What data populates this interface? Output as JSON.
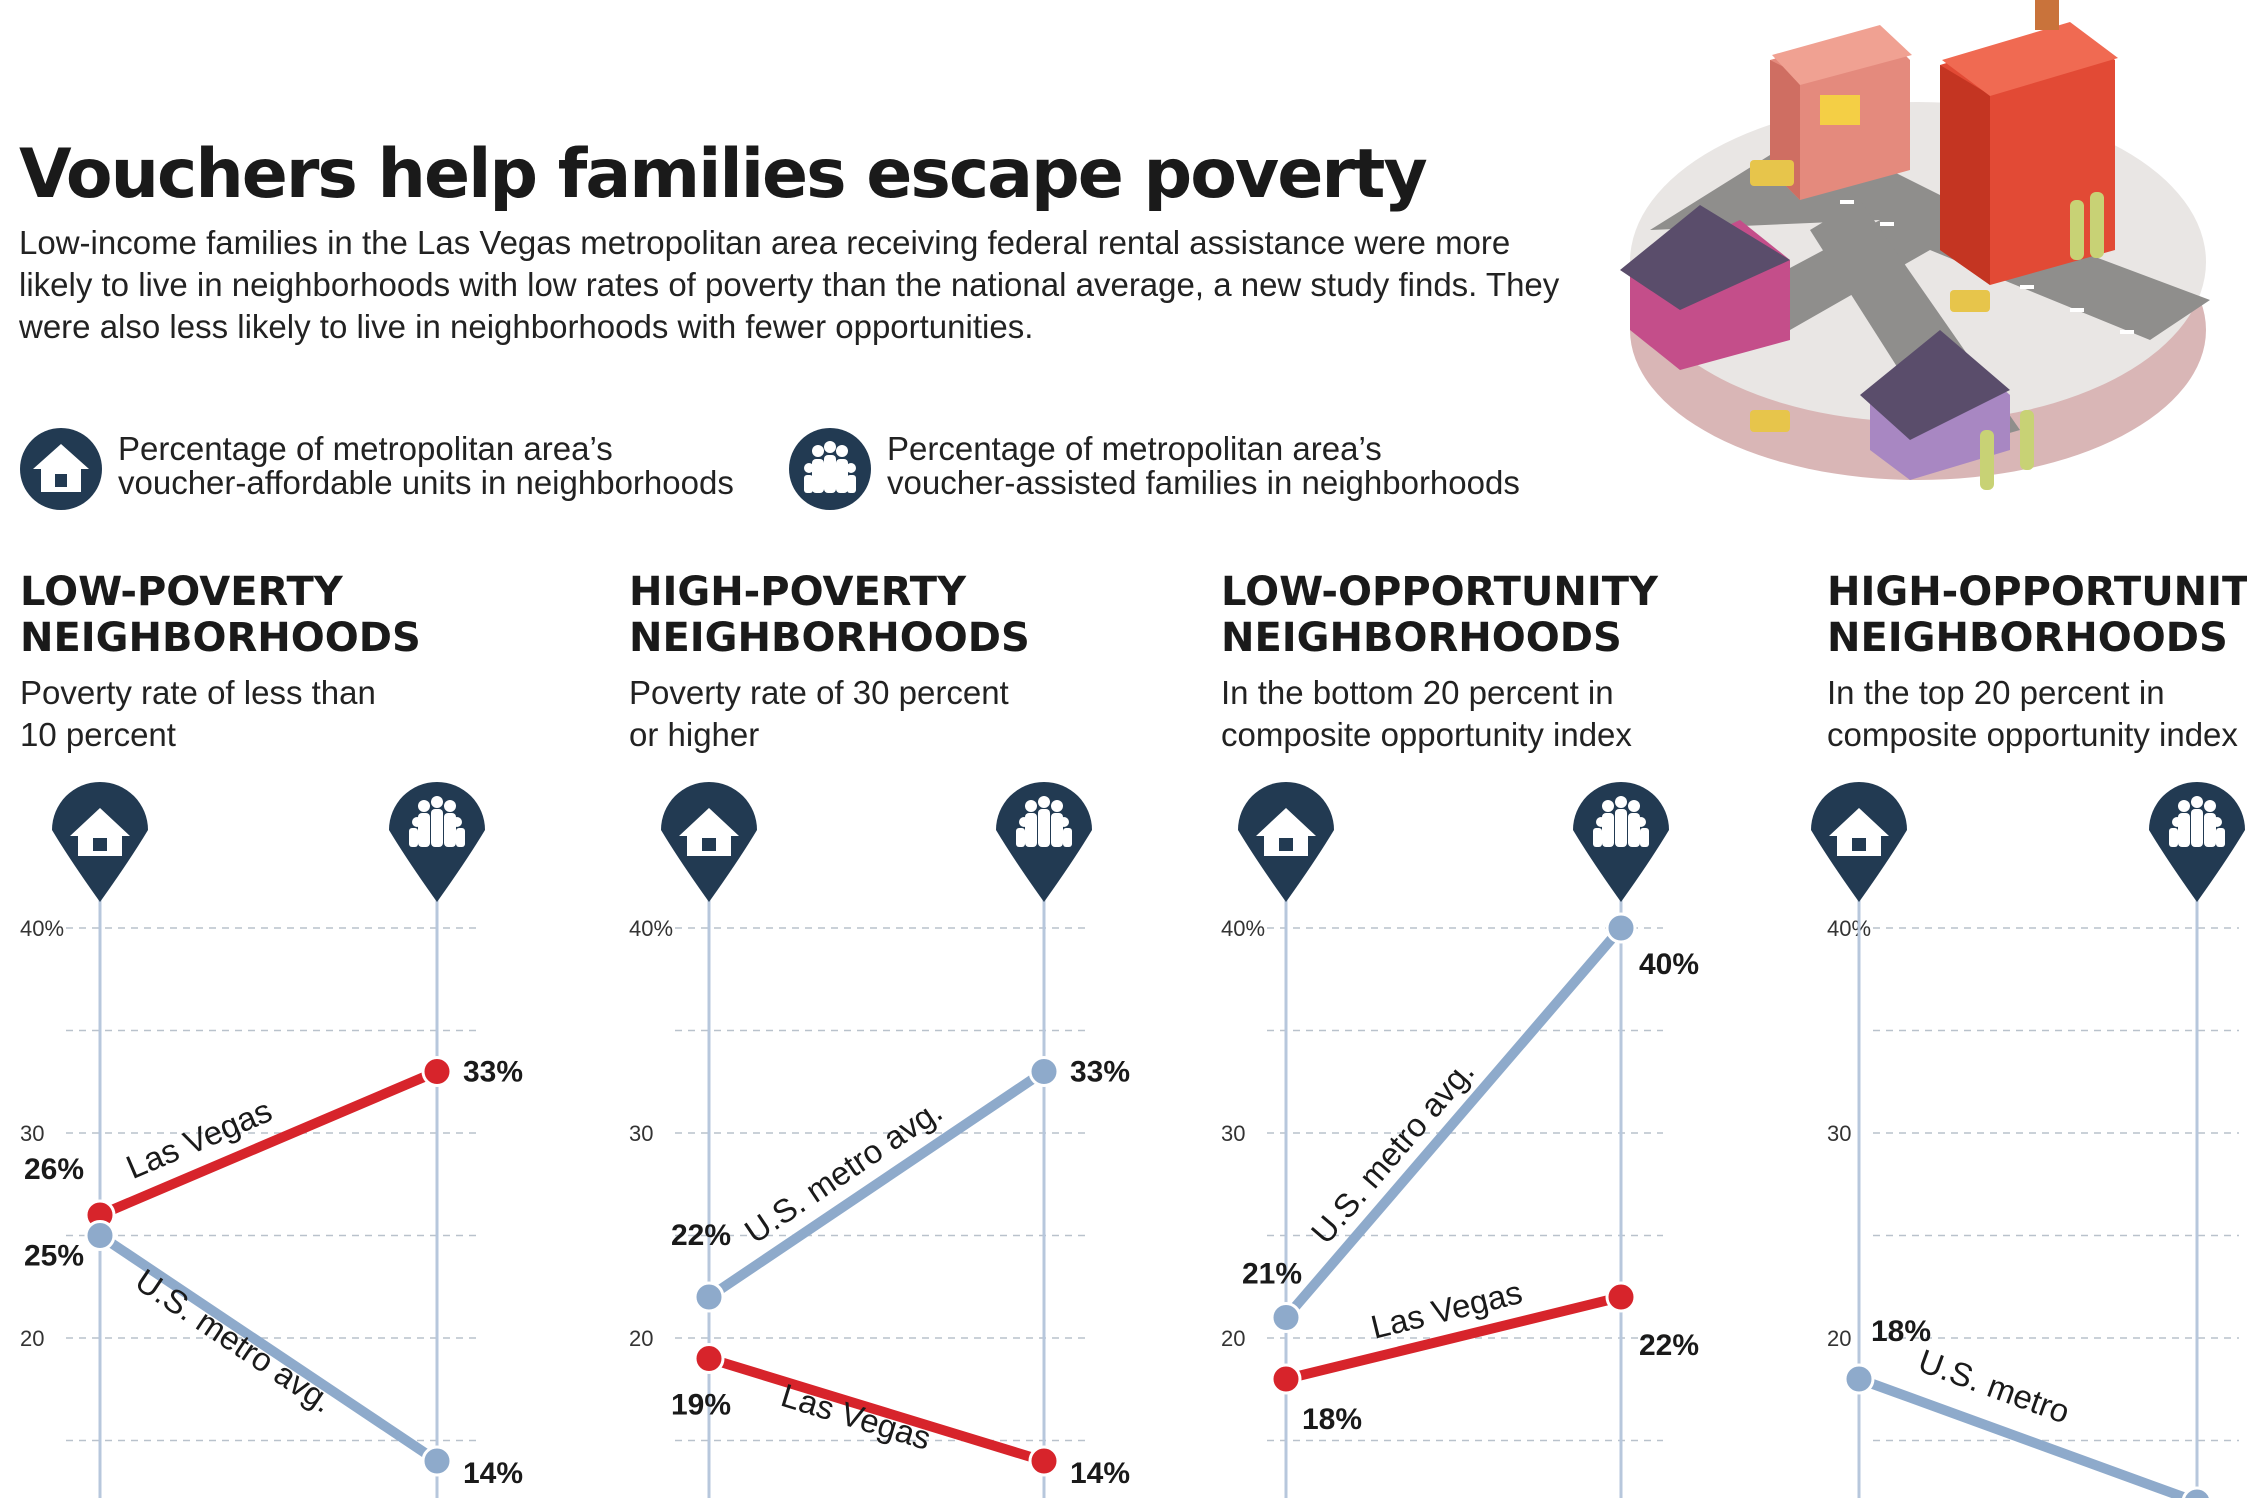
{
  "title": "Vouchers help families escape poverty",
  "subtitle": "Low-income families in the Las Vegas metropolitan area receiving federal rental assistance were more likely to live in neighborhoods with low rates of poverty than the national average, a new study finds. They were also less likely to live in neighborhoods with fewer opportunities.",
  "legend": {
    "units": {
      "icon": "house-icon",
      "line1": "Percentage of metropolitan area’s",
      "line2": "voucher-affordable units in neighborhoods"
    },
    "families": {
      "icon": "family-icon",
      "line1": "Percentage of metropolitan area’s",
      "line2": "voucher-assisted families in neighborhoods"
    }
  },
  "colors": {
    "las_vegas": "#d7242b",
    "us_metro": "#8eaacb",
    "icon_bg": "#223a52",
    "axis": "#b7c7dc",
    "grid": "#b9c2cc"
  },
  "chart_data": [
    {
      "type": "line",
      "title_lines": [
        "LOW-POVERTY",
        "NEIGHBORHOODS"
      ],
      "subtitle_lines": [
        "Poverty rate of less than",
        "10 percent"
      ],
      "x": [
        "voucher-affordable units",
        "voucher-assisted families"
      ],
      "x_icons": [
        "house-icon",
        "family-icon"
      ],
      "ylim": [
        10,
        40
      ],
      "yticks": [
        {
          "v": 40,
          "label": "40%"
        },
        {
          "v": 30,
          "label": "30"
        },
        {
          "v": 20,
          "label": "20"
        }
      ],
      "series": [
        {
          "name": "Las Vegas",
          "values": [
            26,
            33
          ],
          "labels": [
            "26%",
            "33%"
          ],
          "color": "#d7242b"
        },
        {
          "name": "U.S. metro avg.",
          "values": [
            25,
            14
          ],
          "labels": [
            "25%",
            "14%"
          ],
          "color": "#8eaacb"
        }
      ]
    },
    {
      "type": "line",
      "title_lines": [
        "HIGH-POVERTY",
        "NEIGHBORHOODS"
      ],
      "subtitle_lines": [
        "Poverty rate of 30 percent",
        "or higher"
      ],
      "x": [
        "voucher-affordable units",
        "voucher-assisted families"
      ],
      "x_icons": [
        "house-icon",
        "family-icon"
      ],
      "ylim": [
        10,
        40
      ],
      "yticks": [
        {
          "v": 40,
          "label": "40%"
        },
        {
          "v": 30,
          "label": "30"
        },
        {
          "v": 20,
          "label": "20"
        }
      ],
      "series": [
        {
          "name": "U.S. metro avg.",
          "values": [
            22,
            33
          ],
          "labels": [
            "22%",
            "33%"
          ],
          "color": "#8eaacb"
        },
        {
          "name": "Las Vegas",
          "values": [
            19,
            14
          ],
          "labels": [
            "19%",
            "14%"
          ],
          "color": "#d7242b"
        }
      ]
    },
    {
      "type": "line",
      "title_lines": [
        "LOW-OPPORTUNITY",
        "NEIGHBORHOODS"
      ],
      "subtitle_lines": [
        "In the bottom 20 percent in",
        "composite opportunity index"
      ],
      "x": [
        "voucher-affordable units",
        "voucher-assisted families"
      ],
      "x_icons": [
        "house-icon",
        "family-icon"
      ],
      "ylim": [
        10,
        40
      ],
      "yticks": [
        {
          "v": 40,
          "label": "40%"
        },
        {
          "v": 30,
          "label": "30"
        },
        {
          "v": 20,
          "label": "20"
        }
      ],
      "series": [
        {
          "name": "U.S. metro avg.",
          "values": [
            21,
            40
          ],
          "labels": [
            "21%",
            "40%"
          ],
          "color": "#8eaacb"
        },
        {
          "name": "Las Vegas",
          "values": [
            18,
            22
          ],
          "labels": [
            "18%",
            "22%"
          ],
          "color": "#d7242b"
        }
      ]
    },
    {
      "type": "line",
      "title_lines": [
        "HIGH-OPPORTUNITY",
        "NEIGHBORHOODS"
      ],
      "subtitle_lines": [
        "In the top 20 percent in",
        "composite opportunity index"
      ],
      "x": [
        "voucher-affordable units",
        "voucher-assisted families"
      ],
      "x_icons": [
        "house-icon",
        "family-icon"
      ],
      "ylim": [
        10,
        40
      ],
      "yticks": [
        {
          "v": 40,
          "label": "40%"
        },
        {
          "v": 30,
          "label": "30"
        },
        {
          "v": 20,
          "label": "20"
        }
      ],
      "series": [
        {
          "name": "U.S. metro",
          "values": [
            18,
            12
          ],
          "labels": [
            "18%",
            ""
          ],
          "color": "#8eaacb"
        }
      ]
    }
  ]
}
